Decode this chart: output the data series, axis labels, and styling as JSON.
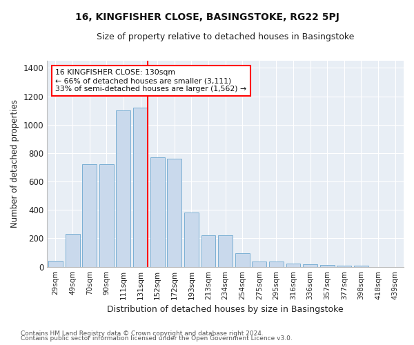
{
  "title": "16, KINGFISHER CLOSE, BASINGSTOKE, RG22 5PJ",
  "subtitle": "Size of property relative to detached houses in Basingstoke",
  "xlabel": "Distribution of detached houses by size in Basingstoke",
  "ylabel": "Number of detached properties",
  "bar_labels": [
    "29sqm",
    "49sqm",
    "70sqm",
    "90sqm",
    "111sqm",
    "131sqm",
    "152sqm",
    "172sqm",
    "193sqm",
    "213sqm",
    "234sqm",
    "254sqm",
    "275sqm",
    "295sqm",
    "316sqm",
    "336sqm",
    "357sqm",
    "377sqm",
    "398sqm",
    "418sqm",
    "439sqm"
  ],
  "bar_values": [
    40,
    230,
    720,
    720,
    1100,
    1120,
    770,
    760,
    380,
    220,
    220,
    95,
    35,
    35,
    25,
    20,
    15,
    10,
    10,
    0,
    0
  ],
  "bar_color": "#c9d9ec",
  "bar_edgecolor": "#7bafd4",
  "plot_bg_color": "#e8eef5",
  "fig_bg_color": "#ffffff",
  "grid_color": "#ffffff",
  "red_line_index": 5,
  "annotation_title": "16 KINGFISHER CLOSE: 130sqm",
  "annotation_line1": "← 66% of detached houses are smaller (3,111)",
  "annotation_line2": "33% of semi-detached houses are larger (1,562) →",
  "ylim": [
    0,
    1450
  ],
  "yticks": [
    0,
    200,
    400,
    600,
    800,
    1000,
    1200,
    1400
  ],
  "footer1": "Contains HM Land Registry data © Crown copyright and database right 2024.",
  "footer2": "Contains public sector information licensed under the Open Government Licence v3.0."
}
